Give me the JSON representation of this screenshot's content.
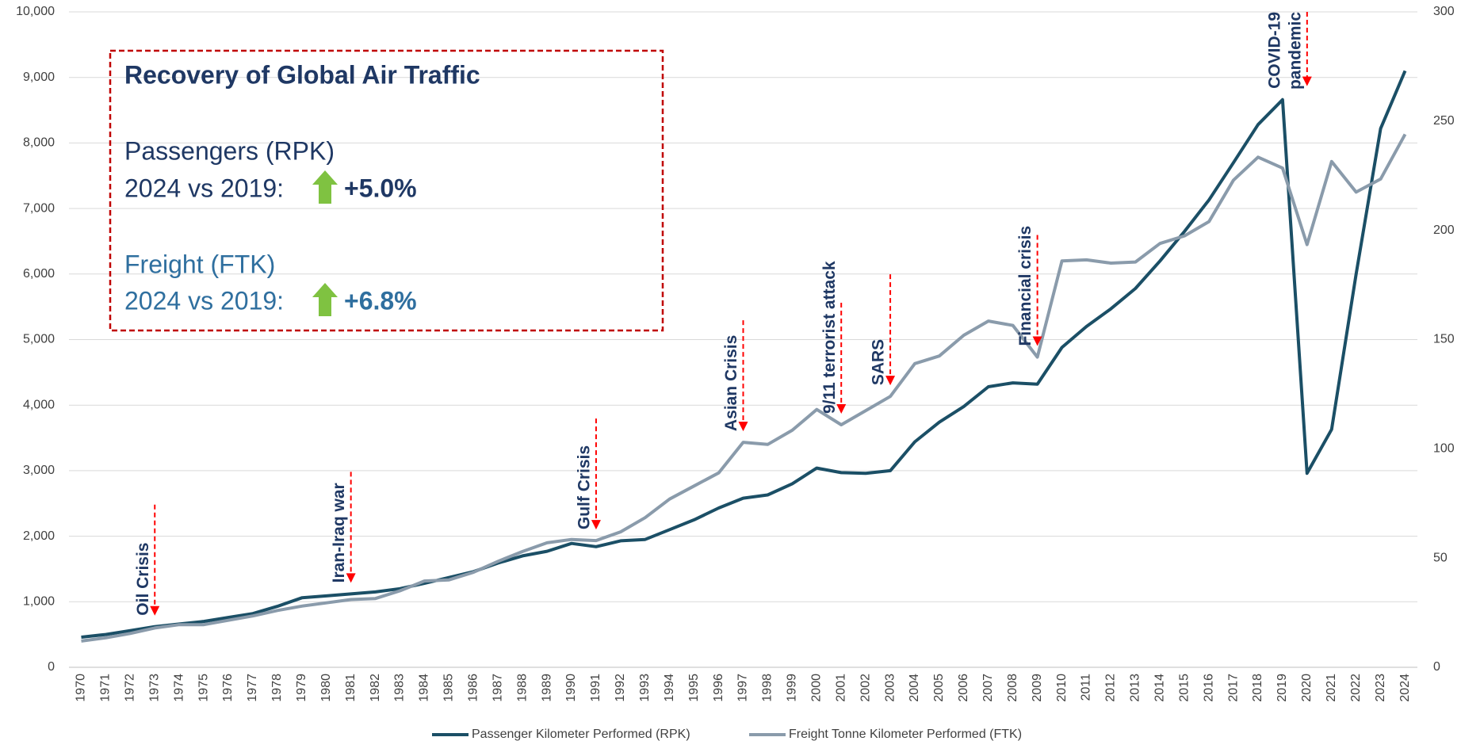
{
  "chart_data": {
    "type": "line",
    "categories": [
      "1970",
      "1971",
      "1972",
      "1973",
      "1974",
      "1975",
      "1976",
      "1977",
      "1978",
      "1979",
      "1980",
      "1981",
      "1982",
      "1983",
      "1984",
      "1985",
      "1986",
      "1987",
      "1988",
      "1989",
      "1990",
      "1991",
      "1992",
      "1993",
      "1994",
      "1995",
      "1996",
      "1997",
      "1998",
      "1999",
      "2000",
      "2001",
      "2002",
      "2003",
      "2004",
      "2005",
      "2006",
      "2007",
      "2008",
      "2009",
      "2010",
      "2011",
      "2012",
      "2013",
      "2014",
      "2015",
      "2016",
      "2017",
      "2018",
      "2019",
      "2020",
      "2021",
      "2022",
      "2023",
      "2024"
    ],
    "series": [
      {
        "name": "Passenger Kilometer Performed (RPK)",
        "color": "#1b4f66",
        "axis": "y",
        "values": [
          460,
          500,
          560,
          620,
          660,
          700,
          760,
          820,
          930,
          1060,
          1090,
          1120,
          1150,
          1200,
          1280,
          1370,
          1460,
          1590,
          1700,
          1770,
          1890,
          1840,
          1930,
          1950,
          2100,
          2250,
          2430,
          2580,
          2630,
          2800,
          3040,
          2970,
          2960,
          3000,
          3440,
          3740,
          3980,
          4280,
          4340,
          4320,
          4880,
          5200,
          5470,
          5780,
          6200,
          6650,
          7130,
          7700,
          8280,
          8660,
          2960,
          3630,
          6000,
          8220,
          9100
        ]
      },
      {
        "name": "Freight Tonne Kilometer Performed (FTK)",
        "color": "#8a9bab",
        "axis": "y2",
        "values": [
          12,
          13.5,
          15.5,
          18,
          19.5,
          19.5,
          21.5,
          23.5,
          26,
          28,
          29.5,
          31,
          31.5,
          35,
          39.5,
          40,
          43.5,
          48.5,
          53,
          57,
          58.5,
          58,
          62,
          68.5,
          77,
          83,
          89,
          103,
          102,
          108.5,
          118,
          111,
          117.5,
          124,
          139,
          142.5,
          152,
          158.5,
          156.5,
          142,
          186,
          186.5,
          185,
          185.5,
          194,
          197.5,
          204,
          223,
          233.5,
          228.5,
          193.5,
          231.5,
          217.5,
          223.5,
          244
        ]
      }
    ],
    "ylim": [
      0,
      10000
    ],
    "yticks": [
      0,
      {
        "value": 1000,
        "label": "1,000"
      },
      {
        "value": 2000,
        "label": "2,000"
      },
      {
        "value": 3000,
        "label": "3,000"
      },
      {
        "value": 4000,
        "label": "4,000"
      },
      {
        "value": 5000,
        "label": "5,000"
      },
      {
        "value": 6000,
        "label": "6,000"
      },
      {
        "value": 7000,
        "label": "7,000"
      },
      {
        "value": 8000,
        "label": "8,000"
      },
      {
        "value": 9000,
        "label": "9,000"
      },
      {
        "value": 10000,
        "label": "10,000"
      }
    ],
    "y2lim": [
      0,
      300
    ],
    "y2ticks": [
      0,
      50,
      100,
      150,
      200,
      250,
      300
    ],
    "grid": true,
    "legend": "bottom",
    "annotations": [
      {
        "lines": [
          "Oil Crisis"
        ],
        "year": "1973"
      },
      {
        "lines": [
          "Iran-Iraq war"
        ],
        "year": "1981"
      },
      {
        "lines": [
          "Gulf Crisis"
        ],
        "year": "1991"
      },
      {
        "lines": [
          "Asian Crisis"
        ],
        "year": "1997"
      },
      {
        "lines": [
          "9/11 terrorist attack"
        ],
        "year": "2001"
      },
      {
        "lines": [
          "SARS"
        ],
        "year": "2003"
      },
      {
        "lines": [
          "Financial crisis"
        ],
        "year": "2009"
      },
      {
        "lines": [
          "COVID-19",
          "pandemic"
        ],
        "year": "2020"
      }
    ],
    "callout": {
      "title": "Recovery of Global Air Traffic",
      "passengers": {
        "label": "Passengers (RPK)",
        "compare": "2024 vs 2019:",
        "change": "+5.0%"
      },
      "freight": {
        "label": "Freight (FTK)",
        "compare": "2024 vs 2019:",
        "change": "+6.8%"
      }
    }
  }
}
